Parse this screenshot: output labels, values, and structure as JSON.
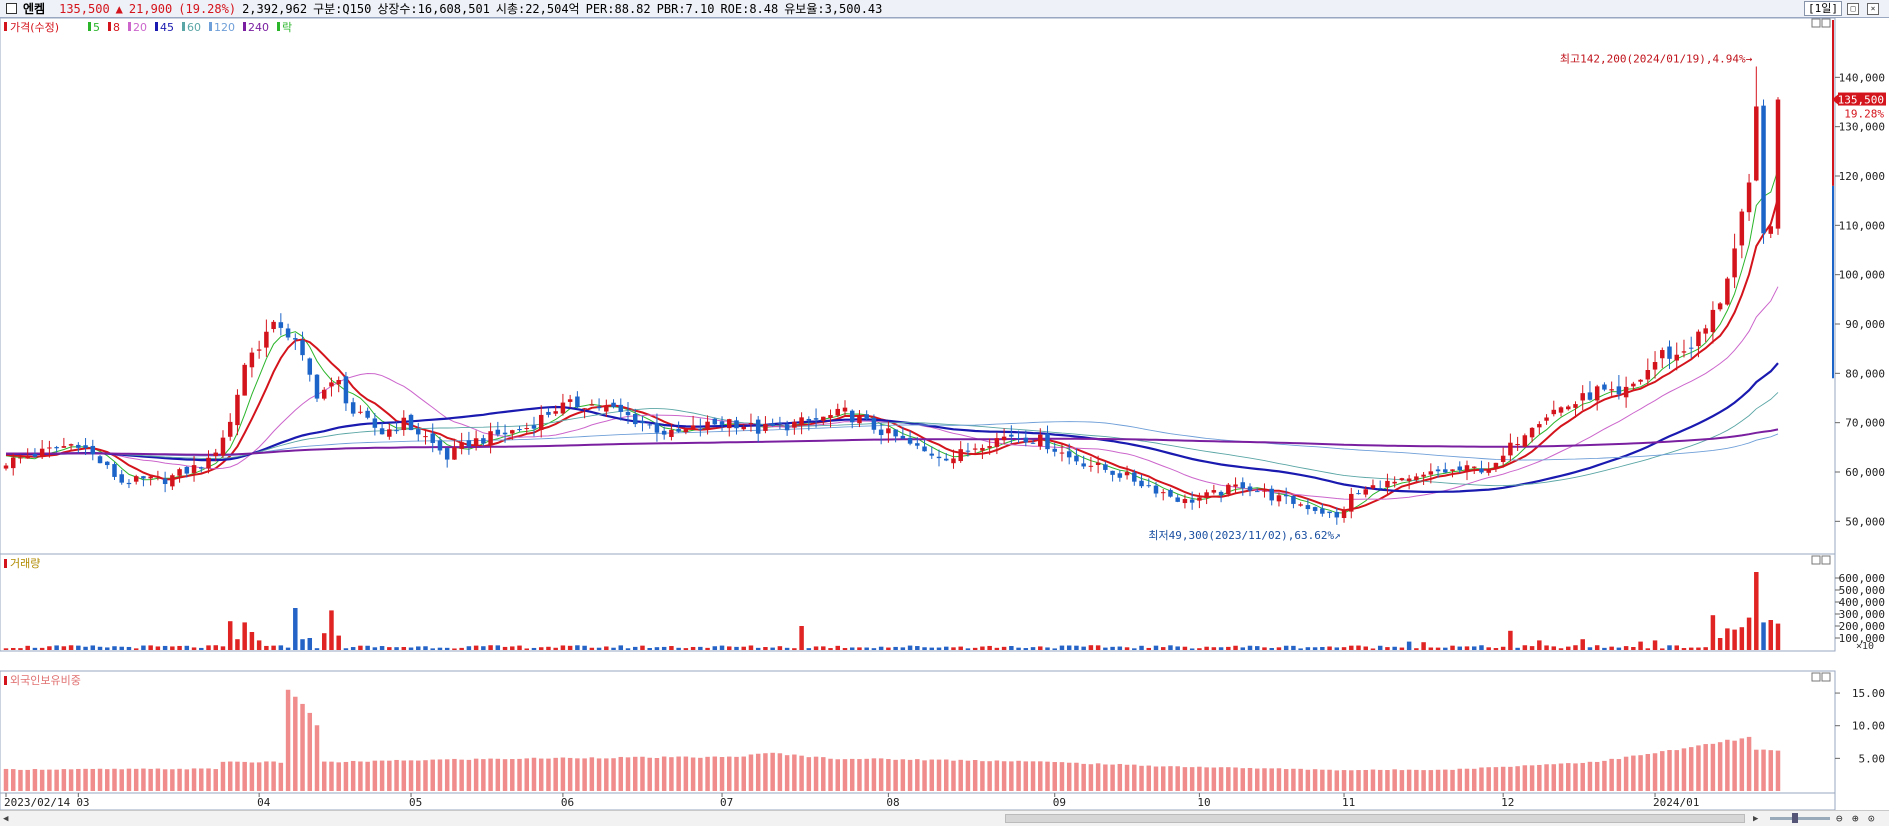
{
  "header": {
    "stock_name": "엔켐",
    "price": "135,500",
    "change_arrow": "▲",
    "change": "21,900",
    "change_pct": "(19.28%)",
    "volume": "2,392,962",
    "category": "구분:Q150",
    "shares": "상장수:16,608,501",
    "market_cap": "시총:22,504억",
    "per": "PER:88.82",
    "pbr": "PBR:7.10",
    "roe": "ROE:8.48",
    "reserve": "유보율:3,500.43",
    "period": "[1일]"
  },
  "legend": {
    "price_label": "가격(수정)",
    "ma": [
      "5",
      "8",
      "20",
      "45",
      "60",
      "120",
      "240"
    ],
    "ma_colors": [
      "#2bb52b",
      "#d4141c",
      "#cc66cc",
      "#1a1ab0",
      "#5aa5a5",
      "#6f9fd8",
      "#7a1fa0"
    ],
    "extra": "락"
  },
  "volume_panel": {
    "title": "거래량",
    "multiplier": "×10"
  },
  "foreign_panel": {
    "title": "외국인보유비중"
  },
  "annotations": {
    "high": "최고142,200(2024/01/19),4.94%",
    "low": "최저49,300(2023/11/02),63.62%",
    "last_price": "135,500",
    "last_pct": "19.28%"
  },
  "colors": {
    "up": "#d4141c",
    "down": "#1c64c8",
    "volume_up": "#e02424",
    "volume_down": "#2563c7",
    "foreign": "#f08c8c"
  },
  "chart_data": [
    {
      "type": "candlestick",
      "title": "가격(수정)",
      "ylim": [
        45000,
        150000
      ],
      "yticks": [
        50000,
        60000,
        70000,
        80000,
        90000,
        100000,
        110000,
        120000,
        130000,
        140000
      ],
      "ytick_labels": [
        "50,000",
        "60,000",
        "70,000",
        "80,000",
        "90,000",
        "100,000",
        "110,000",
        "120,000",
        "130,000",
        "140,000"
      ],
      "x_labels": [
        "2023/02/14",
        "03",
        "04",
        "05",
        "06",
        "07",
        "08",
        "09",
        "10",
        "11",
        "12",
        "2024/01"
      ],
      "x_label_index": [
        0,
        10,
        35,
        56,
        77,
        99,
        122,
        145,
        165,
        185,
        207,
        228
      ],
      "n_days": 246,
      "keypoints": [
        [
          0,
          62000
        ],
        [
          5,
          64000
        ],
        [
          10,
          66000
        ],
        [
          16,
          58000
        ],
        [
          22,
          58500
        ],
        [
          28,
          62000
        ],
        [
          31,
          70000
        ],
        [
          33,
          82000
        ],
        [
          36,
          88000
        ],
        [
          38,
          90000
        ],
        [
          40,
          86000
        ],
        [
          43,
          76000
        ],
        [
          46,
          78000
        ],
        [
          48,
          72000
        ],
        [
          52,
          68000
        ],
        [
          55,
          70000
        ],
        [
          58,
          67000
        ],
        [
          61,
          63000
        ],
        [
          64,
          66000
        ],
        [
          68,
          67500
        ],
        [
          72,
          69000
        ],
        [
          76,
          73000
        ],
        [
          80,
          74000
        ],
        [
          84,
          72500
        ],
        [
          88,
          70000
        ],
        [
          92,
          67500
        ],
        [
          96,
          69000
        ],
        [
          100,
          70500
        ],
        [
          104,
          68500
        ],
        [
          108,
          69500
        ],
        [
          112,
          70500
        ],
        [
          116,
          72000
        ],
        [
          120,
          69000
        ],
        [
          123,
          67000
        ],
        [
          127,
          64000
        ],
        [
          131,
          63000
        ],
        [
          135,
          66000
        ],
        [
          139,
          67500
        ],
        [
          143,
          66500
        ],
        [
          147,
          63000
        ],
        [
          151,
          61000
        ],
        [
          155,
          59000
        ],
        [
          159,
          56500
        ],
        [
          163,
          54000
        ],
        [
          167,
          55500
        ],
        [
          171,
          57500
        ],
        [
          175,
          55000
        ],
        [
          179,
          53500
        ],
        [
          182,
          52000
        ],
        [
          184,
          50500
        ],
        [
          186,
          55000
        ],
        [
          190,
          57500
        ],
        [
          194,
          58000
        ],
        [
          198,
          60000
        ],
        [
          202,
          60500
        ],
        [
          206,
          61000
        ],
        [
          208,
          65000
        ],
        [
          211,
          70000
        ],
        [
          214,
          72500
        ],
        [
          217,
          74000
        ],
        [
          220,
          76500
        ],
        [
          223,
          75000
        ],
        [
          226,
          79000
        ],
        [
          229,
          84000
        ],
        [
          231,
          83500
        ],
        [
          233,
          86000
        ],
        [
          235,
          89000
        ],
        [
          237,
          95000
        ],
        [
          239,
          105000
        ],
        [
          241,
          117000
        ],
        [
          242,
          133000
        ],
        [
          243,
          110000
        ],
        [
          244,
          108000
        ],
        [
          245,
          135500
        ]
      ],
      "high_annotation": {
        "index": 242,
        "value": 142200
      },
      "low_annotation": {
        "index": 184,
        "value": 49300
      },
      "last_close": 135500
    },
    {
      "type": "bar",
      "title": "거래량",
      "ylim": [
        0,
        700000
      ],
      "yticks": [
        100000,
        200000,
        300000,
        400000,
        500000,
        600000
      ],
      "ytick_labels": [
        "100,000",
        "200,000",
        "300,000",
        "400,000",
        "500,000",
        "600,000"
      ],
      "spikes": [
        [
          31,
          240000
        ],
        [
          32,
          90000
        ],
        [
          33,
          230000
        ],
        [
          34,
          150000
        ],
        [
          35,
          80000
        ],
        [
          40,
          350000
        ],
        [
          41,
          90000
        ],
        [
          42,
          100000
        ],
        [
          44,
          140000
        ],
        [
          45,
          330000
        ],
        [
          46,
          120000
        ],
        [
          110,
          200000
        ],
        [
          194,
          70000
        ],
        [
          196,
          65000
        ],
        [
          208,
          160000
        ],
        [
          212,
          80000
        ],
        [
          218,
          90000
        ],
        [
          226,
          70000
        ],
        [
          228,
          80000
        ],
        [
          236,
          290000
        ],
        [
          237,
          100000
        ],
        [
          238,
          180000
        ],
        [
          239,
          170000
        ],
        [
          240,
          190000
        ],
        [
          241,
          270000
        ],
        [
          242,
          650000
        ],
        [
          243,
          230000
        ],
        [
          244,
          250000
        ],
        [
          245,
          220000
        ]
      ],
      "base_volume": 25000
    },
    {
      "type": "bar",
      "title": "외국인보유비중",
      "ylim": [
        0,
        17
      ],
      "yticks": [
        5,
        10,
        15
      ],
      "ytick_labels": [
        "5.00",
        "10.00",
        "15.00"
      ],
      "keypoints": [
        [
          0,
          3.3
        ],
        [
          29,
          3.4
        ],
        [
          30,
          4.5
        ],
        [
          38,
          4.4
        ],
        [
          39,
          15.2
        ],
        [
          40,
          14.6
        ],
        [
          41,
          13.5
        ],
        [
          42,
          11.8
        ],
        [
          43,
          10.2
        ],
        [
          44,
          4.4
        ],
        [
          60,
          4.8
        ],
        [
          80,
          5.1
        ],
        [
          100,
          5.2
        ],
        [
          106,
          5.8
        ],
        [
          114,
          5.0
        ],
        [
          140,
          4.6
        ],
        [
          160,
          3.8
        ],
        [
          185,
          3.2
        ],
        [
          200,
          3.3
        ],
        [
          220,
          4.5
        ],
        [
          232,
          6.5
        ],
        [
          236,
          7.3
        ],
        [
          241,
          8.2
        ],
        [
          242,
          6.3
        ],
        [
          245,
          6.1
        ]
      ]
    }
  ]
}
